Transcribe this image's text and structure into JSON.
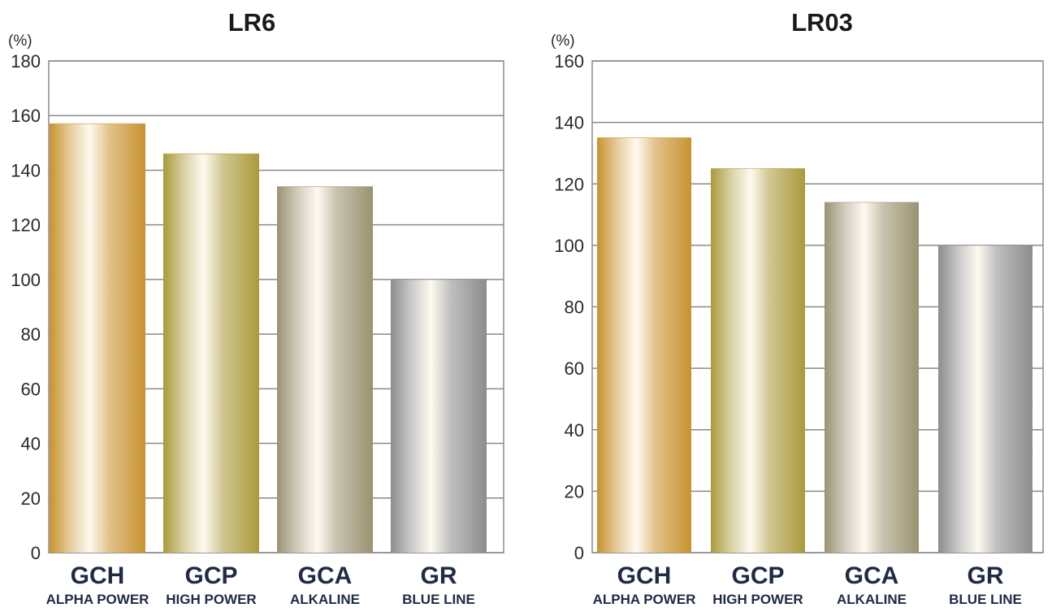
{
  "chart_data": [
    {
      "type": "bar",
      "title": "LR6",
      "unit": "(%)",
      "categories": [
        "GCH",
        "GCP",
        "GCA",
        "GR"
      ],
      "category_sublabels": [
        "ALPHA POWER",
        "HIGH POWER",
        "ALKALINE",
        "BLUE LINE"
      ],
      "values": [
        157,
        146,
        134,
        100
      ],
      "ylim": [
        0,
        180
      ],
      "yticks": [
        0,
        20,
        40,
        60,
        80,
        100,
        120,
        140,
        160,
        180
      ],
      "grid": true,
      "bar_colors": [
        "#c8922e",
        "#aa9a3a",
        "#9a9270",
        "#8c8c8c"
      ]
    },
    {
      "type": "bar",
      "title": "LR03",
      "unit": "(%)",
      "categories": [
        "GCH",
        "GCP",
        "GCA",
        "GR"
      ],
      "category_sublabels": [
        "ALPHA POWER",
        "HIGH POWER",
        "ALKALINE",
        "BLUE LINE"
      ],
      "values": [
        135,
        125,
        114,
        100
      ],
      "ylim": [
        0,
        160
      ],
      "yticks": [
        0,
        20,
        40,
        60,
        80,
        100,
        120,
        140,
        160
      ],
      "grid": true,
      "bar_colors": [
        "#c8922e",
        "#aa9a3a",
        "#9a9270",
        "#8c8c8c"
      ]
    }
  ]
}
